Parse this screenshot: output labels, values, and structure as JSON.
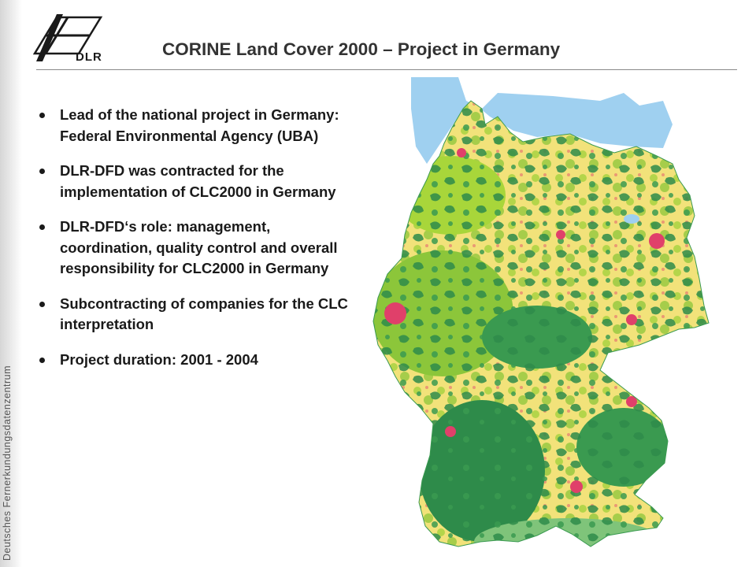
{
  "slide": {
    "side_label": "Deutsches Fernerkundungsdatenzentrum",
    "logo_text": "DLR",
    "title": "CORINE Land Cover 2000 – Project in Germany",
    "bullets": [
      "Lead of the national project in Germany: Federal Environmental Agency (UBA)",
      "DLR-DFD was contracted for the implementation of CLC2000 in Germany",
      "DLR-DFD‘s role: management, coordination, quality control and overall responsibility for CLC2000 in Germany",
      "Subcontracting of companies for the CLC interpretation",
      "Project duration: 2001 - 2004"
    ]
  },
  "map": {
    "colors": {
      "agriculture": "#f2e27a",
      "forest": "#2e8b4a",
      "grassland": "#9fd13a",
      "urban": "#e0406a",
      "water": "#9fd0f0",
      "wetland": "#7fd4c8"
    }
  }
}
